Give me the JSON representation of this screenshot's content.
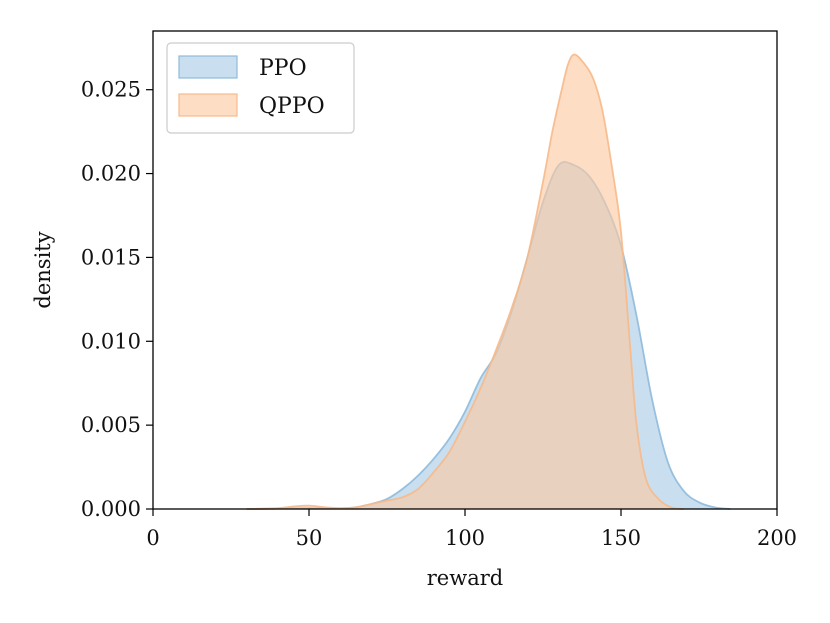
{
  "chart_data": {
    "type": "area",
    "xlabel": "reward",
    "ylabel": "density",
    "xlim": [
      0,
      200
    ],
    "ylim": [
      0,
      0.0285
    ],
    "x_ticks": [
      "0",
      "50",
      "100",
      "150",
      "200"
    ],
    "y_ticks": [
      "0.000",
      "0.005",
      "0.010",
      "0.015",
      "0.020",
      "0.025"
    ],
    "grid": false,
    "legend_position": "top-left",
    "series": [
      {
        "name": "PPO",
        "fill": "#a8cbe5",
        "stroke": "#8fbadb",
        "x": [
          30,
          40,
          50,
          60,
          65,
          70,
          75,
          80,
          85,
          90,
          95,
          100,
          105,
          110,
          115,
          120,
          125,
          130,
          135,
          140,
          145,
          150,
          155,
          160,
          165,
          170,
          175,
          180,
          185
        ],
        "y": [
          0,
          2e-05,
          5e-05,
          3e-05,
          0.0001,
          0.0003,
          0.0006,
          0.0012,
          0.002,
          0.003,
          0.0042,
          0.0058,
          0.0078,
          0.0093,
          0.0118,
          0.015,
          0.0183,
          0.0205,
          0.0205,
          0.0198,
          0.0182,
          0.0157,
          0.0115,
          0.0065,
          0.0028,
          0.0011,
          0.0004,
          0.0001,
          0
        ]
      },
      {
        "name": "QPPO",
        "fill": "#fcc9a1",
        "stroke": "#f7b98a",
        "x": [
          30,
          40,
          45,
          50,
          55,
          60,
          65,
          70,
          75,
          80,
          85,
          90,
          95,
          100,
          105,
          110,
          115,
          120,
          125,
          128,
          131,
          133,
          135,
          138,
          141,
          144,
          147,
          150,
          153,
          155,
          158,
          162,
          166,
          170
        ],
        "y": [
          0,
          5e-05,
          0.00015,
          0.0002,
          0.0001,
          5e-05,
          0.0001,
          0.0003,
          0.0005,
          0.0007,
          0.0012,
          0.0022,
          0.0034,
          0.0052,
          0.0072,
          0.0095,
          0.012,
          0.015,
          0.0195,
          0.0225,
          0.025,
          0.0265,
          0.0271,
          0.0266,
          0.0257,
          0.0238,
          0.0205,
          0.0165,
          0.0095,
          0.005,
          0.0018,
          0.0006,
          0.0001,
          0
        ]
      }
    ]
  }
}
